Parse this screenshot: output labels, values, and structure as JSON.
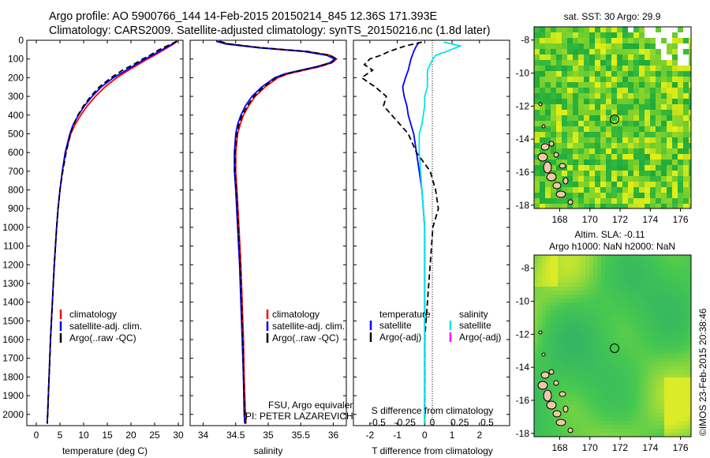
{
  "header": {
    "title_line1": "Argo profile: AO 5900766_144 14-Feb-2015 20150214_845 12.36S 171.393E",
    "title_line2": "Climatology: CARS2009. Satellite-adjusted climatology: synTS_20150216.nc (1.8d later)"
  },
  "chart_data": [
    {
      "type": "line",
      "panel": "temperature",
      "xlabel": "temperature (deg C)",
      "xlim": [
        -2,
        31
      ],
      "xticks": [
        0,
        5,
        10,
        15,
        20,
        25,
        30
      ],
      "ylim": [
        2060,
        0
      ],
      "yticks": [
        0,
        100,
        200,
        300,
        400,
        500,
        600,
        700,
        800,
        900,
        1000,
        1100,
        1200,
        1300,
        1400,
        1500,
        1600,
        1700,
        1800,
        1900,
        2000
      ],
      "y": [
        5,
        20,
        50,
        80,
        100,
        130,
        160,
        200,
        250,
        300,
        350,
        400,
        450,
        500,
        600,
        700,
        800,
        900,
        1000,
        1200,
        1400,
        1600,
        1800,
        2000,
        2050
      ],
      "legend": [
        "climatology",
        "satellite-adj. clim.",
        "Argo(..raw -QC)"
      ],
      "series": [
        {
          "name": "climatology",
          "color": "#ff0000",
          "x": [
            29.8,
            29.0,
            27.0,
            25.0,
            23.5,
            21.5,
            19.5,
            17.0,
            14.5,
            12.5,
            10.8,
            9.4,
            8.2,
            7.3,
            6.2,
            5.5,
            5.0,
            4.6,
            4.3,
            3.8,
            3.4,
            3.0,
            2.7,
            2.4,
            2.3
          ]
        },
        {
          "name": "satellite-adj. clim.",
          "color": "#0000ff",
          "x": [
            29.6,
            28.8,
            26.6,
            24.5,
            23.0,
            21.0,
            19.0,
            16.3,
            13.7,
            11.8,
            10.2,
            8.9,
            7.8,
            7.1,
            6.1,
            5.5,
            5.0,
            4.6,
            4.3,
            3.8,
            3.4,
            3.0,
            2.7,
            2.4,
            2.3
          ]
        },
        {
          "name": "Argo(..raw -QC)",
          "color": "#000000",
          "dashed": true,
          "x": [
            29.7,
            28.5,
            26.0,
            24.0,
            22.5,
            20.5,
            18.2,
            15.8,
            13.3,
            11.5,
            10.0,
            8.8,
            7.9,
            7.2,
            6.3,
            5.6,
            5.0,
            4.6,
            4.3,
            3.8,
            3.4,
            3.0,
            2.7,
            2.4,
            2.3
          ]
        }
      ]
    },
    {
      "type": "line",
      "panel": "salinity",
      "xlabel": "salinity",
      "xlim": [
        33.8,
        36.2
      ],
      "xticks": [
        34,
        34.5,
        35,
        35.5,
        36
      ],
      "ylim": [
        2060,
        0
      ],
      "y": [
        5,
        20,
        40,
        60,
        80,
        100,
        120,
        140,
        160,
        180,
        200,
        250,
        300,
        350,
        400,
        450,
        500,
        600,
        700,
        800,
        1000,
        1200,
        1400,
        1600,
        1800,
        2000,
        2050
      ],
      "legend": [
        "climatology",
        "satellite-adj. clim.",
        "Argo(..raw -QC)"
      ],
      "series": [
        {
          "name": "climatology",
          "color": "#ff0000",
          "x": [
            34.2,
            34.4,
            34.9,
            35.6,
            35.95,
            36.05,
            35.98,
            35.8,
            35.55,
            35.3,
            35.15,
            34.95,
            34.8,
            34.7,
            34.62,
            34.57,
            34.53,
            34.5,
            34.5,
            34.52,
            34.55,
            34.58,
            34.6,
            34.62,
            34.63,
            34.65,
            34.66
          ]
        },
        {
          "name": "satellite-adj. clim.",
          "color": "#0000ff",
          "x": [
            34.2,
            34.35,
            34.85,
            35.55,
            35.9,
            36.02,
            35.95,
            35.75,
            35.5,
            35.25,
            35.1,
            34.9,
            34.75,
            34.65,
            34.58,
            34.53,
            34.5,
            34.48,
            34.48,
            34.5,
            34.53,
            34.56,
            34.58,
            34.6,
            34.62,
            34.63,
            34.64
          ]
        },
        {
          "name": "Argo(..raw -QC)",
          "color": "#000000",
          "dashed": true,
          "x": [
            34.25,
            34.4,
            34.9,
            35.6,
            35.95,
            36.05,
            35.97,
            35.78,
            35.52,
            35.28,
            35.12,
            34.93,
            34.78,
            34.68,
            34.6,
            34.55,
            34.52,
            34.49,
            34.49,
            34.51,
            34.54,
            34.57,
            34.59,
            34.61,
            34.62,
            34.64,
            34.65
          ]
        }
      ]
    },
    {
      "type": "line",
      "panel": "difference",
      "xlabel": "T difference from climatology",
      "xlabel_top": "S difference from climatology",
      "xlim": [
        -2.6,
        3.1
      ],
      "xticks": [
        -2,
        -1,
        0,
        1,
        2
      ],
      "xticks_top": [
        -0.5,
        -0.25,
        0,
        0.25,
        0.5
      ],
      "ylim": [
        2060,
        0
      ],
      "y": [
        10,
        30,
        60,
        80,
        100,
        130,
        160,
        200,
        250,
        300,
        350,
        400,
        450,
        500,
        600,
        700,
        800,
        900,
        1000,
        1200,
        1400,
        1600,
        1800,
        2000,
        2050
      ],
      "legend_titles": [
        "temperature",
        "salinity"
      ],
      "legend": [
        "satellite",
        "Argo(-adj)",
        "satellite",
        "Argo(-adj)"
      ],
      "series": [
        {
          "name": "satellite",
          "group": "temperature",
          "color": "#0000ff",
          "x": [
            -0.2,
            -0.3,
            -0.4,
            -0.45,
            -0.5,
            -0.55,
            -0.6,
            -0.7,
            -0.8,
            -0.75,
            -0.65,
            -0.6,
            -0.5,
            -0.4,
            -0.3,
            -0.2,
            -0.1,
            -0.05,
            0.0,
            0.0,
            0.0,
            0.0,
            0.0,
            0.0,
            0.0
          ]
        },
        {
          "name": "Argo(-adj)",
          "group": "temperature",
          "color": "#000000",
          "dashed": true,
          "x": [
            -0.1,
            -0.7,
            -1.3,
            -1.6,
            -2.0,
            -2.2,
            -1.9,
            -2.3,
            -1.8,
            -1.4,
            -1.5,
            -1.2,
            -0.9,
            -0.6,
            -0.3,
            0.2,
            0.4,
            0.5,
            0.3,
            0.2,
            0.1,
            0.0,
            0.0,
            0.0,
            0.0
          ]
        },
        {
          "name": "satellite",
          "group": "salinity",
          "color": "#00e5e5",
          "x": [
            0.7,
            1.3,
            0.8,
            0.4,
            0.3,
            0.2,
            0.1,
            0.1,
            0.1,
            0.0,
            0.0,
            -0.05,
            -0.1,
            -0.2,
            -0.2,
            -0.15,
            -0.1,
            -0.05,
            0.0,
            0.0,
            0.0,
            0.0,
            0.0,
            0.0,
            0.0
          ]
        },
        {
          "name": "Argo(-adj)",
          "group": "salinity",
          "color": "#ff00ff",
          "x": []
        }
      ]
    },
    {
      "type": "heatmap",
      "panel": "sst-map",
      "title": "sat. SST: 30 Argo: 29.9",
      "xlim": [
        166.3,
        176.7
      ],
      "ylim": [
        -18.2,
        -7.2
      ],
      "xticks": [
        168,
        170,
        172,
        174,
        176
      ],
      "yticks": [
        -8,
        -10,
        -12,
        -14,
        -16,
        -18
      ],
      "marker": {
        "lon": 171.393,
        "lat": -12.36
      }
    },
    {
      "type": "heatmap",
      "panel": "sla-map",
      "title_line1": "Altim. SLA: -0.11",
      "title_line2": "Argo h1000: NaN h2000: NaN",
      "xlim": [
        166.3,
        176.7
      ],
      "ylim": [
        -18.2,
        -7.2
      ],
      "xticks": [
        168,
        170,
        172,
        174,
        176
      ],
      "yticks": [
        -8,
        -10,
        -12,
        -14,
        -16,
        -18
      ],
      "marker": {
        "lon": 171.393,
        "lat": -12.36
      }
    }
  ],
  "annotations": {
    "provider": "FSU, Argo equivalent",
    "pi": "PI: PETER LAZAREVICH",
    "credit": "©IMOS 23-Feb-2015 20:38:46"
  }
}
